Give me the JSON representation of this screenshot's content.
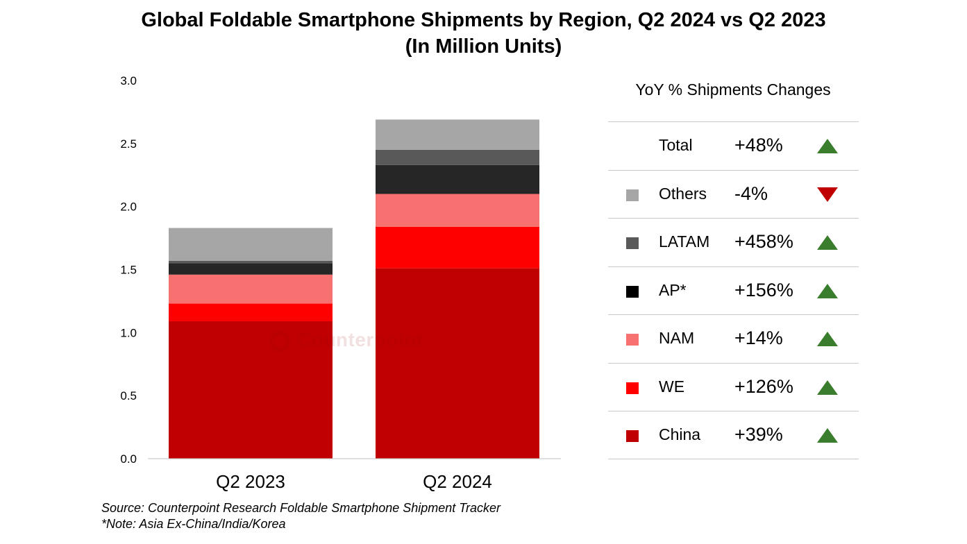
{
  "chart_data": {
    "type": "bar",
    "stacked": true,
    "title": "Global Foldable Smartphone Shipments by Region, Q2 2024 vs Q2 2023",
    "subtitle": "(In Million Units)",
    "categories": [
      "Q2 2023",
      "Q2 2024"
    ],
    "ylim": [
      0,
      3.0
    ],
    "yticks": [
      "0.0",
      "0.5",
      "1.0",
      "1.5",
      "2.0",
      "2.5",
      "3.0"
    ],
    "series": [
      {
        "name": "China",
        "color": "#c00000",
        "values": [
          1.09,
          1.51
        ]
      },
      {
        "name": "WE",
        "color": "#ff0000",
        "values": [
          0.14,
          0.33
        ]
      },
      {
        "name": "NAM",
        "color": "#f87171",
        "values": [
          0.23,
          0.26
        ]
      },
      {
        "name": "AP*",
        "color": "#262626",
        "values": [
          0.09,
          0.23
        ]
      },
      {
        "name": "LATAM",
        "color": "#595959",
        "values": [
          0.02,
          0.12
        ]
      },
      {
        "name": "Others",
        "color": "#a6a6a6",
        "values": [
          0.26,
          0.24
        ]
      }
    ]
  },
  "title_line1": "Global Foldable Smartphone Shipments by Region, Q2 2024 vs Q2 2023",
  "title_line2": "(In Million Units)",
  "legend": {
    "title": "YoY % Shipments Changes",
    "rows": [
      {
        "label": "Total",
        "pct": "+48%",
        "direction": "up",
        "color": ""
      },
      {
        "label": "Others",
        "pct": "-4%",
        "direction": "down",
        "color": "#a6a6a6"
      },
      {
        "label": "LATAM",
        "pct": "+458%",
        "direction": "up",
        "color": "#595959"
      },
      {
        "label": "AP*",
        "pct": "+156%",
        "direction": "up",
        "color": "#000000"
      },
      {
        "label": "NAM",
        "pct": "+14%",
        "direction": "up",
        "color": "#f87171"
      },
      {
        "label": "WE",
        "pct": "+126%",
        "direction": "up",
        "color": "#ff0000"
      },
      {
        "label": "China",
        "pct": "+39%",
        "direction": "up",
        "color": "#c00000"
      }
    ],
    "up_color": "#3a7d2c",
    "down_color": "#c00000"
  },
  "source": "Source: Counterpoint Research Foldable Smartphone Shipment Tracker",
  "note": "*Note: Asia Ex-China/India/Korea",
  "watermark": "Counterpoint"
}
